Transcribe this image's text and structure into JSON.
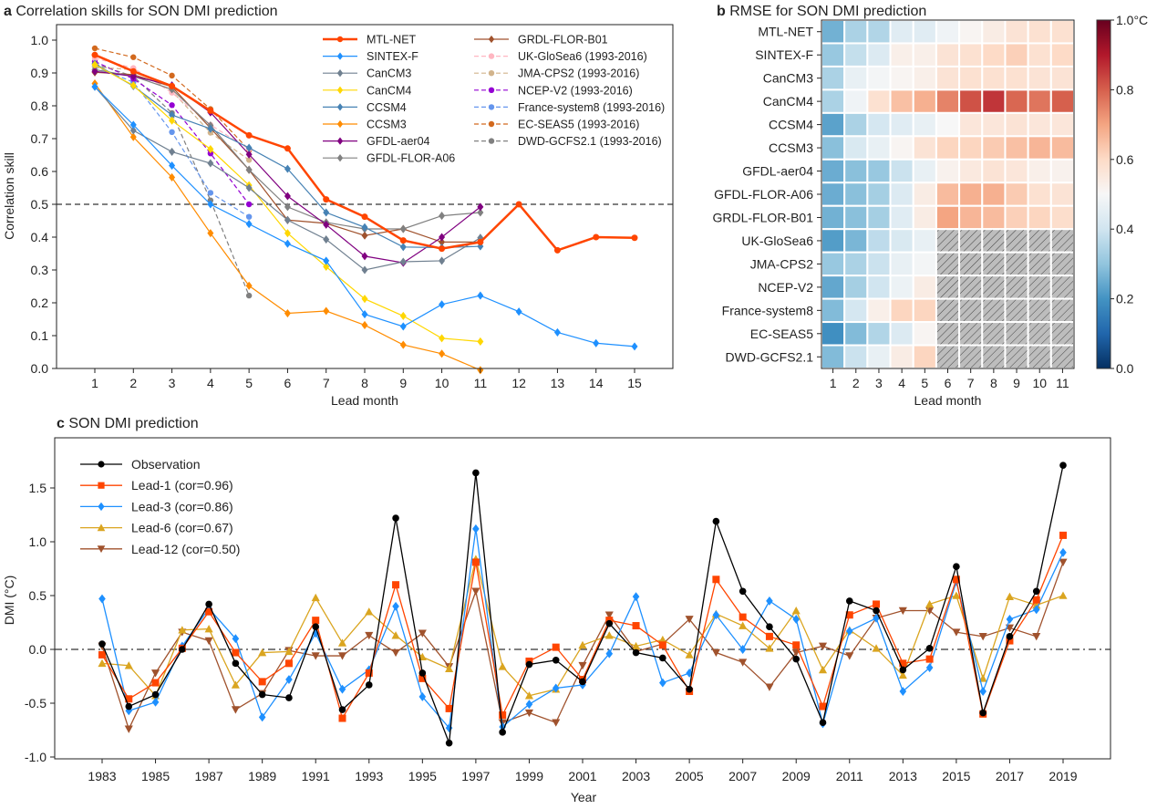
{
  "chart_data": [
    {
      "id": "a",
      "type": "line",
      "panel_letter": "a",
      "title": "Correlation skills for SON DMI prediction",
      "xlabel": "Lead month",
      "ylabel": "Correlation skill",
      "xlim": [
        0.3,
        16.0
      ],
      "ylim": [
        0.0,
        1.03
      ],
      "xticks": [
        1,
        2,
        3,
        4,
        5,
        6,
        7,
        8,
        9,
        10,
        11,
        12,
        13,
        14,
        15
      ],
      "yticks": [
        0.0,
        0.1,
        0.2,
        0.3,
        0.4,
        0.5,
        0.6,
        0.7,
        0.8,
        0.9,
        1.0
      ],
      "ytick_labels": [
        "0.0",
        "0.1",
        "0.2",
        "0.3",
        "0.4",
        "0.5",
        "0.6",
        "0.7",
        "0.8",
        "0.9",
        "1.0"
      ],
      "reference_line": 0.5,
      "legend_placement": "top-right",
      "series": [
        {
          "name": "MTL-NET",
          "color": "#ff4500",
          "style": "solid",
          "width": 2.5,
          "marker": "circle",
          "x": [
            1,
            2,
            3,
            4,
            5,
            6,
            7,
            8,
            9,
            10,
            11,
            12,
            13,
            14,
            15
          ],
          "values": [
            0.955,
            0.905,
            0.86,
            0.785,
            0.71,
            0.67,
            0.515,
            0.462,
            0.39,
            0.365,
            0.385,
            0.5,
            0.36,
            0.4,
            0.398
          ]
        },
        {
          "name": "SINTEX-F",
          "color": "#1e90ff",
          "style": "solid",
          "width": 1.2,
          "marker": "diamond",
          "x": [
            1,
            2,
            3,
            4,
            5,
            6,
            7,
            8,
            9,
            10,
            11,
            12,
            13,
            14,
            15
          ],
          "values": [
            0.858,
            0.742,
            0.618,
            0.5,
            0.44,
            0.38,
            0.328,
            0.165,
            0.128,
            0.195,
            0.222,
            0.173,
            0.11,
            0.077,
            0.067
          ]
        },
        {
          "name": "CanCM3",
          "color": "#708090",
          "style": "solid",
          "width": 1.2,
          "marker": "diamond",
          "x": [
            1,
            2,
            3,
            4,
            5,
            6,
            7,
            8,
            9,
            10,
            11
          ],
          "values": [
            0.858,
            0.725,
            0.66,
            0.625,
            0.55,
            0.452,
            0.393,
            0.3,
            0.325,
            0.328,
            0.398
          ]
        },
        {
          "name": "CanCM4",
          "color": "#ffd700",
          "style": "solid",
          "width": 1.2,
          "marker": "diamond",
          "x": [
            1,
            2,
            3,
            4,
            5,
            6,
            7,
            8,
            9,
            10,
            11
          ],
          "values": [
            0.925,
            0.862,
            0.755,
            0.668,
            0.558,
            0.412,
            0.31,
            0.212,
            0.16,
            0.092,
            0.082
          ]
        },
        {
          "name": "CCSM4",
          "color": "#4682b4",
          "style": "solid",
          "width": 1.2,
          "marker": "diamond",
          "x": [
            1,
            2,
            3,
            4,
            5,
            6,
            7,
            8,
            9,
            10,
            11
          ],
          "values": [
            0.928,
            0.86,
            0.772,
            0.73,
            0.672,
            0.608,
            0.475,
            0.43,
            0.37,
            0.368,
            0.372
          ]
        },
        {
          "name": "CCSM3",
          "color": "#ff8c00",
          "style": "solid",
          "width": 1.2,
          "marker": "diamond",
          "x": [
            1,
            2,
            3,
            4,
            5,
            6,
            7,
            8,
            9,
            10,
            11
          ],
          "values": [
            0.868,
            0.705,
            0.582,
            0.412,
            0.252,
            0.168,
            0.175,
            0.132,
            0.072,
            0.045,
            -0.005
          ]
        },
        {
          "name": "GFDL-aer04",
          "color": "#800080",
          "style": "solid",
          "width": 1.2,
          "marker": "diamond",
          "x": [
            1,
            2,
            3,
            4,
            5,
            6,
            7,
            8,
            9,
            10,
            11
          ],
          "values": [
            0.905,
            0.89,
            0.862,
            0.78,
            0.652,
            0.525,
            0.438,
            0.342,
            0.322,
            0.4,
            0.492
          ]
        },
        {
          "name": "GFDL-FLOR-A06",
          "color": "#808080",
          "style": "solid",
          "width": 1.2,
          "marker": "diamond",
          "x": [
            1,
            2,
            3,
            4,
            5,
            6,
            7,
            8,
            9,
            10,
            11
          ],
          "values": [
            0.91,
            0.89,
            0.85,
            0.74,
            0.605,
            0.492,
            0.445,
            0.425,
            0.425,
            0.465,
            0.475
          ]
        },
        {
          "name": "GRDL-FLOR-B01",
          "color": "#a0522d",
          "style": "solid",
          "width": 1.2,
          "marker": "diamond",
          "x": [
            1,
            2,
            3,
            4,
            5,
            6,
            7,
            8,
            9,
            10,
            11
          ],
          "values": [
            0.902,
            0.895,
            0.858,
            0.732,
            0.605,
            0.452,
            0.442,
            0.405,
            0.425,
            0.385,
            0.385
          ]
        },
        {
          "name": "UK-GloSea6 (1993-2016)",
          "color": "#ffb6c1",
          "style": "dashed",
          "width": 1.2,
          "marker": "circle",
          "x": [
            1,
            2,
            3,
            4,
            5
          ],
          "values": [
            0.945,
            0.915,
            0.84,
            0.742,
            0.668
          ]
        },
        {
          "name": "JMA-CPS2 (1993-2016)",
          "color": "#d2b48c",
          "style": "dashed",
          "width": 1.2,
          "marker": "circle",
          "x": [
            1,
            2,
            3,
            4,
            5
          ],
          "values": [
            0.918,
            0.91,
            0.845,
            0.718,
            0.635
          ]
        },
        {
          "name": "NCEP-V2 (1993-2016)",
          "color": "#9400d3",
          "style": "dashed",
          "width": 1.2,
          "marker": "circle",
          "x": [
            1,
            2,
            3,
            4,
            5
          ],
          "values": [
            0.935,
            0.882,
            0.802,
            0.655,
            0.5
          ]
        },
        {
          "name": "France-system8 (1993-2016)",
          "color": "#6495ed",
          "style": "dashed",
          "width": 1.2,
          "marker": "circle",
          "x": [
            1,
            2,
            3,
            4,
            5
          ],
          "values": [
            0.92,
            0.872,
            0.72,
            0.535,
            0.462
          ]
        },
        {
          "name": "EC-SEAS5 (1993-2016)",
          "color": "#d2691e",
          "style": "dashed",
          "width": 1.2,
          "marker": "circle",
          "x": [
            1,
            2,
            3,
            4,
            5
          ],
          "values": [
            0.975,
            0.948,
            0.892,
            0.79,
            0.665
          ]
        },
        {
          "name": "DWD-GCFS2.1 (1993-2016)",
          "color": "#808080",
          "style": "dashed",
          "width": 1.2,
          "marker": "circle",
          "x": [
            1,
            2,
            3,
            4,
            5
          ],
          "values": [
            0.928,
            0.89,
            0.778,
            0.512,
            0.222
          ]
        }
      ]
    },
    {
      "id": "b",
      "type": "heatmap",
      "panel_letter": "b",
      "title": "RMSE for SON DMI prediction",
      "xlabel": "Lead month",
      "ylabel": "",
      "columns": [
        "1",
        "2",
        "3",
        "4",
        "5",
        "6",
        "7",
        "8",
        "9",
        "10",
        "11"
      ],
      "rows": [
        "MTL-NET",
        "SINTEX-F",
        "CanCM3",
        "CanCM4",
        "CCSM4",
        "CCSM3",
        "GFDL-aer04",
        "GFDL-FLOR-A06",
        "GRDL-FLOR-B01",
        "UK-GloSea6",
        "JMA-CPS2",
        "NCEP-V2",
        "France-system8",
        "EC-SEAS5",
        "DWD-GCFS2.1"
      ],
      "values": [
        [
          0.26,
          0.34,
          0.35,
          0.44,
          0.44,
          0.48,
          0.51,
          0.54,
          0.57,
          0.58,
          0.58
        ],
        [
          0.31,
          0.38,
          0.43,
          0.53,
          0.53,
          0.57,
          0.58,
          0.6,
          0.62,
          0.58,
          0.6
        ],
        [
          0.34,
          0.46,
          0.49,
          0.51,
          0.53,
          0.57,
          0.58,
          0.58,
          0.58,
          0.57,
          0.57
        ],
        [
          0.34,
          0.48,
          0.58,
          0.65,
          0.68,
          0.75,
          0.82,
          0.86,
          0.79,
          0.77,
          0.8
        ],
        [
          0.23,
          0.34,
          0.41,
          0.44,
          0.46,
          0.5,
          0.56,
          0.56,
          0.57,
          0.56,
          0.56
        ],
        [
          0.29,
          0.42,
          0.46,
          0.51,
          0.57,
          0.61,
          0.61,
          0.63,
          0.65,
          0.67,
          0.66
        ],
        [
          0.25,
          0.29,
          0.31,
          0.39,
          0.46,
          0.52,
          0.55,
          0.57,
          0.56,
          0.53,
          0.52
        ],
        [
          0.25,
          0.29,
          0.33,
          0.43,
          0.54,
          0.66,
          0.68,
          0.68,
          0.63,
          0.58,
          0.57
        ],
        [
          0.26,
          0.29,
          0.33,
          0.44,
          0.54,
          0.7,
          0.67,
          0.66,
          0.62,
          0.61,
          0.59
        ],
        [
          0.22,
          0.27,
          0.37,
          0.42,
          0.46,
          null,
          null,
          null,
          null,
          null,
          null
        ],
        [
          0.31,
          0.34,
          0.39,
          0.46,
          0.49,
          null,
          null,
          null,
          null,
          null,
          null
        ],
        [
          0.24,
          0.33,
          0.4,
          0.47,
          0.54,
          null,
          null,
          null,
          null,
          null,
          null
        ],
        [
          0.28,
          0.41,
          0.53,
          0.61,
          0.61,
          null,
          null,
          null,
          null,
          null,
          null
        ],
        [
          0.19,
          0.28,
          0.35,
          0.43,
          0.51,
          null,
          null,
          null,
          null,
          null,
          null
        ],
        [
          0.28,
          0.39,
          0.46,
          0.54,
          0.61,
          null,
          null,
          null,
          null,
          null,
          null
        ]
      ],
      "missing_pattern": "hatched-gray",
      "colormap": "RdBu_r",
      "vmin": 0.0,
      "vmax": 1.0,
      "colorbar_ticks": [
        0.0,
        0.2,
        0.4,
        0.6,
        0.8,
        1.0
      ],
      "colorbar_tick_labels": [
        "0.0",
        "0.2",
        "0.4",
        "0.6",
        "0.8",
        "1.0°C"
      ]
    },
    {
      "id": "c",
      "type": "line",
      "panel_letter": "c",
      "title": "SON DMI prediction",
      "xlabel": "Year",
      "ylabel": "DMI (°C)",
      "xlim": [
        1981.2,
        2020.8
      ],
      "ylim": [
        -1.0,
        1.95
      ],
      "xticks": [
        1983,
        1985,
        1987,
        1989,
        1991,
        1993,
        1995,
        1997,
        1999,
        2001,
        2003,
        2005,
        2007,
        2009,
        2011,
        2013,
        2015,
        2017,
        2019
      ],
      "yticks": [
        -1.0,
        -0.5,
        0.0,
        0.5,
        1.0,
        1.5
      ],
      "ytick_labels": [
        "-1.0",
        "-0.5",
        "0.0",
        "0.5",
        "1.0",
        "1.5"
      ],
      "reference_line": 0.0,
      "legend_placement": "top-left",
      "x": [
        1983,
        1984,
        1985,
        1986,
        1987,
        1988,
        1989,
        1990,
        1991,
        1992,
        1993,
        1994,
        1995,
        1996,
        1997,
        1998,
        1999,
        2000,
        2001,
        2002,
        2003,
        2004,
        2005,
        2006,
        2007,
        2008,
        2009,
        2010,
        2011,
        2012,
        2013,
        2014,
        2015,
        2016,
        2017,
        2018,
        2019
      ],
      "series": [
        {
          "name": "Observation",
          "color": "#000000",
          "marker": "circle",
          "values": [
            0.05,
            -0.53,
            -0.42,
            0.0,
            0.42,
            -0.13,
            -0.42,
            -0.45,
            0.21,
            -0.56,
            -0.33,
            1.22,
            -0.22,
            -0.87,
            1.64,
            -0.77,
            -0.14,
            -0.1,
            -0.3,
            0.24,
            -0.03,
            -0.08,
            -0.37,
            1.19,
            0.54,
            0.21,
            -0.09,
            -0.68,
            0.45,
            0.36,
            -0.19,
            0.01,
            0.77,
            -0.59,
            0.12,
            0.54,
            1.71
          ]
        },
        {
          "name": "Lead-1 (cor=0.96)",
          "color": "#ff4500",
          "marker": "square",
          "values": [
            -0.05,
            -0.46,
            -0.31,
            0.01,
            0.35,
            -0.03,
            -0.3,
            -0.13,
            0.27,
            -0.64,
            -0.22,
            0.6,
            -0.27,
            -0.55,
            0.81,
            -0.61,
            -0.11,
            0.02,
            -0.28,
            0.27,
            0.22,
            0.04,
            -0.39,
            0.65,
            0.3,
            0.12,
            0.04,
            -0.53,
            0.32,
            0.42,
            -0.13,
            -0.09,
            0.65,
            -0.6,
            0.08,
            0.46,
            1.06
          ]
        },
        {
          "name": "Lead-3 (cor=0.86)",
          "color": "#1e90ff",
          "marker": "diamond",
          "values": [
            0.47,
            -0.57,
            -0.49,
            0.03,
            0.38,
            0.1,
            -0.63,
            -0.28,
            0.15,
            -0.37,
            -0.19,
            0.4,
            -0.44,
            -0.73,
            1.12,
            -0.72,
            -0.51,
            -0.36,
            -0.33,
            -0.04,
            0.49,
            -0.31,
            -0.22,
            0.32,
            0.0,
            0.45,
            0.28,
            -0.69,
            0.17,
            0.29,
            -0.39,
            -0.17,
            0.63,
            -0.39,
            0.28,
            0.37,
            0.9
          ]
        },
        {
          "name": "Lead-6 (cor=0.67)",
          "color": "#daa520",
          "marker": "triangle-up",
          "values": [
            -0.13,
            -0.15,
            -0.43,
            0.18,
            0.19,
            -0.33,
            -0.03,
            -0.02,
            0.48,
            0.06,
            0.35,
            0.13,
            -0.07,
            -0.18,
            0.84,
            -0.16,
            -0.43,
            -0.37,
            0.04,
            0.13,
            0.03,
            0.09,
            -0.05,
            0.33,
            0.22,
            0.01,
            0.36,
            -0.19,
            0.18,
            0.01,
            -0.24,
            0.42,
            0.5,
            -0.27,
            0.49,
            0.41,
            0.5
          ]
        },
        {
          "name": "Lead-12 (cor=0.50)",
          "color": "#a0522d",
          "marker": "triangle-down",
          "values": [
            0.03,
            -0.74,
            -0.22,
            0.16,
            0.08,
            -0.56,
            -0.41,
            -0.01,
            -0.06,
            -0.06,
            0.13,
            -0.03,
            0.15,
            -0.16,
            0.54,
            -0.68,
            -0.59,
            -0.68,
            -0.15,
            0.32,
            -0.02,
            0.05,
            0.28,
            -0.03,
            -0.12,
            -0.35,
            -0.03,
            0.03,
            -0.06,
            0.29,
            0.36,
            0.36,
            0.16,
            0.12,
            0.2,
            0.12,
            0.81
          ]
        }
      ]
    }
  ]
}
